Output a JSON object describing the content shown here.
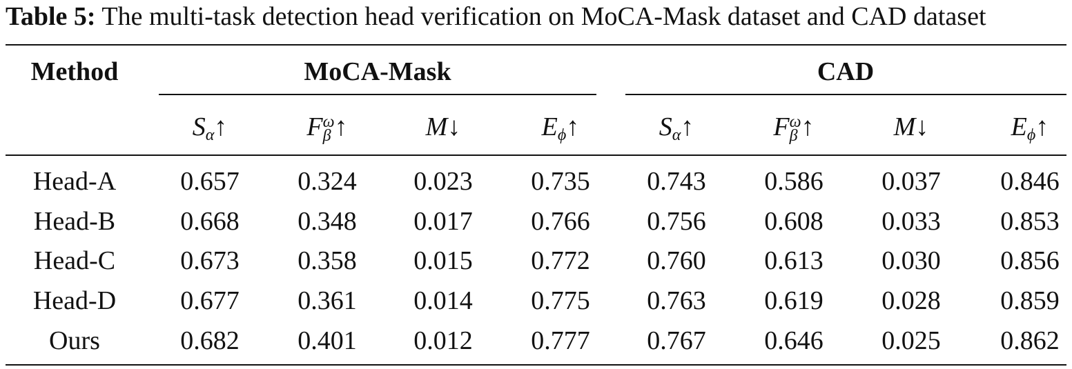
{
  "caption": {
    "label": "Table 5:",
    "text": "The multi-task detection head verification on MoCA-Mask dataset and CAD dataset"
  },
  "table": {
    "method_header": "Method",
    "groups": [
      "MoCA-Mask",
      "CAD"
    ],
    "metrics": [
      {
        "base": "S",
        "sub": "α",
        "sup": "",
        "arrow": "↑"
      },
      {
        "base": "F",
        "sub": "β",
        "sup": "ω",
        "arrow": "↑"
      },
      {
        "base": "M",
        "sub": "",
        "sup": "",
        "arrow": "↓"
      },
      {
        "base": "E",
        "sub": "ϕ",
        "sup": "",
        "arrow": "↑"
      },
      {
        "base": "S",
        "sub": "α",
        "sup": "",
        "arrow": "↑"
      },
      {
        "base": "F",
        "sub": "β",
        "sup": "ω",
        "arrow": "↑"
      },
      {
        "base": "M",
        "sub": "",
        "sup": "",
        "arrow": "↓"
      },
      {
        "base": "E",
        "sub": "ϕ",
        "sup": "",
        "arrow": "↑"
      }
    ],
    "rows": [
      {
        "method": "Head-A",
        "values": [
          "0.657",
          "0.324",
          "0.023",
          "0.735",
          "0.743",
          "0.586",
          "0.037",
          "0.846"
        ]
      },
      {
        "method": "Head-B",
        "values": [
          "0.668",
          "0.348",
          "0.017",
          "0.766",
          "0.756",
          "0.608",
          "0.033",
          "0.853"
        ]
      },
      {
        "method": "Head-C",
        "values": [
          "0.673",
          "0.358",
          "0.015",
          "0.772",
          "0.760",
          "0.613",
          "0.030",
          "0.856"
        ]
      },
      {
        "method": "Head-D",
        "values": [
          "0.677",
          "0.361",
          "0.014",
          "0.775",
          "0.763",
          "0.619",
          "0.028",
          "0.859"
        ]
      },
      {
        "method": "Ours",
        "values": [
          "0.682",
          "0.401",
          "0.012",
          "0.777",
          "0.767",
          "0.646",
          "0.025",
          "0.862"
        ]
      }
    ]
  }
}
